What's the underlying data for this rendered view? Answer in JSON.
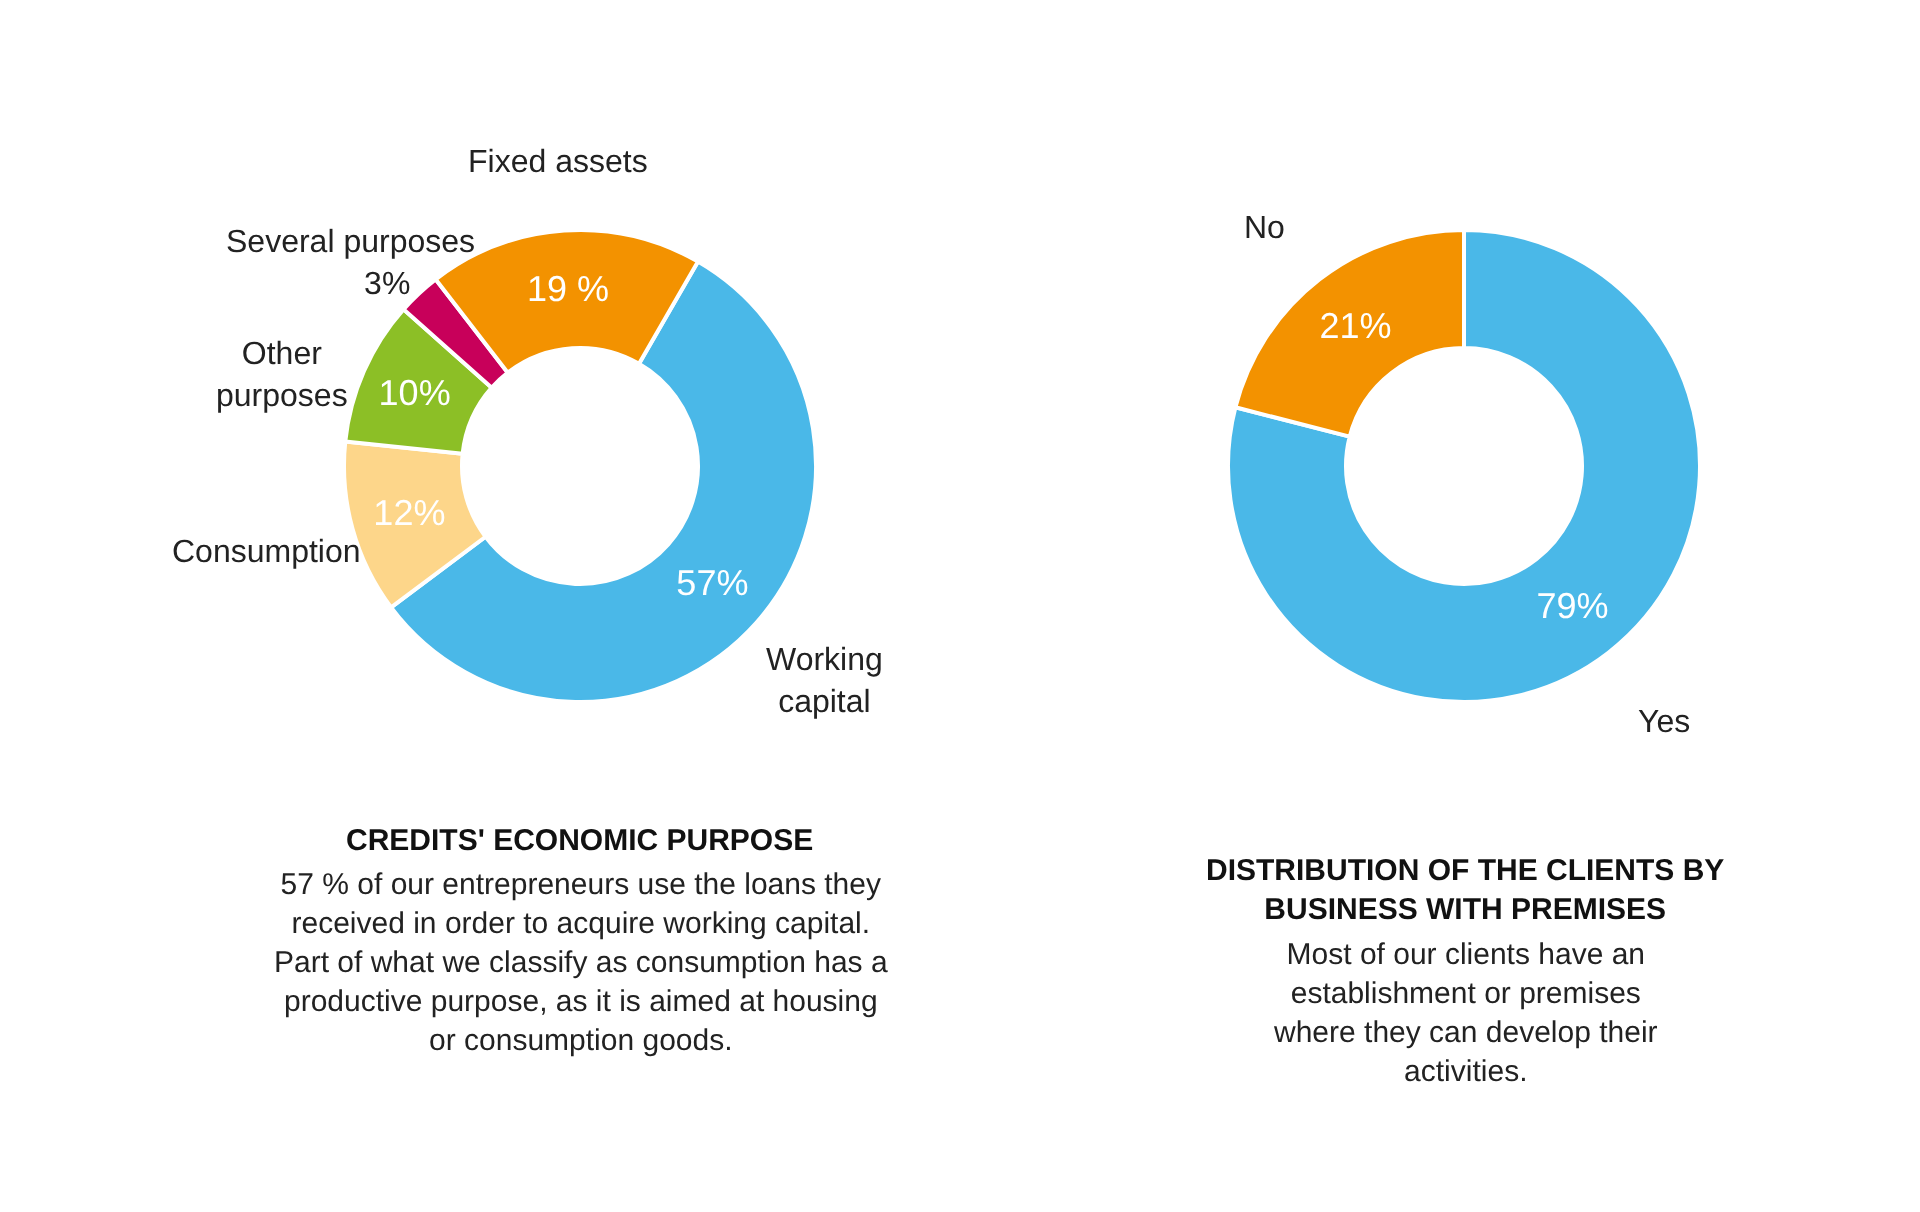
{
  "chart_data": [
    {
      "type": "donut",
      "title": "CREDITS' ECONOMIC PURPOSE",
      "subtitle": "57 % of our entrepreneurs use the loans they received in order to acquire working capital. Part of what we classify as consumption has a productive purpose, as it is aimed at housing or consumption goods.",
      "categories": [
        "Working capital",
        "Consumption",
        "Other purposes",
        "Several purposes",
        "Fixed assets"
      ],
      "values": [
        57,
        12,
        10,
        3,
        19
      ],
      "value_labels": [
        "57%",
        "12%",
        "10%",
        "3%",
        "19 %"
      ],
      "colors": [
        "#4ab8e8",
        "#fdd68a",
        "#8cbf26",
        "#c8005a",
        "#f39200"
      ]
    },
    {
      "type": "donut",
      "title": "DISTRIBUTION OF THE CLIENTS BY BUSINESS WITH PREMISES",
      "subtitle": "Most of our clients have an establishment or premises where they can develop their activities.",
      "categories": [
        "Yes",
        "No"
      ],
      "values": [
        79,
        21
      ],
      "value_labels": [
        "79%",
        "21%"
      ],
      "colors": [
        "#4ab8e8",
        "#f39200"
      ]
    }
  ]
}
